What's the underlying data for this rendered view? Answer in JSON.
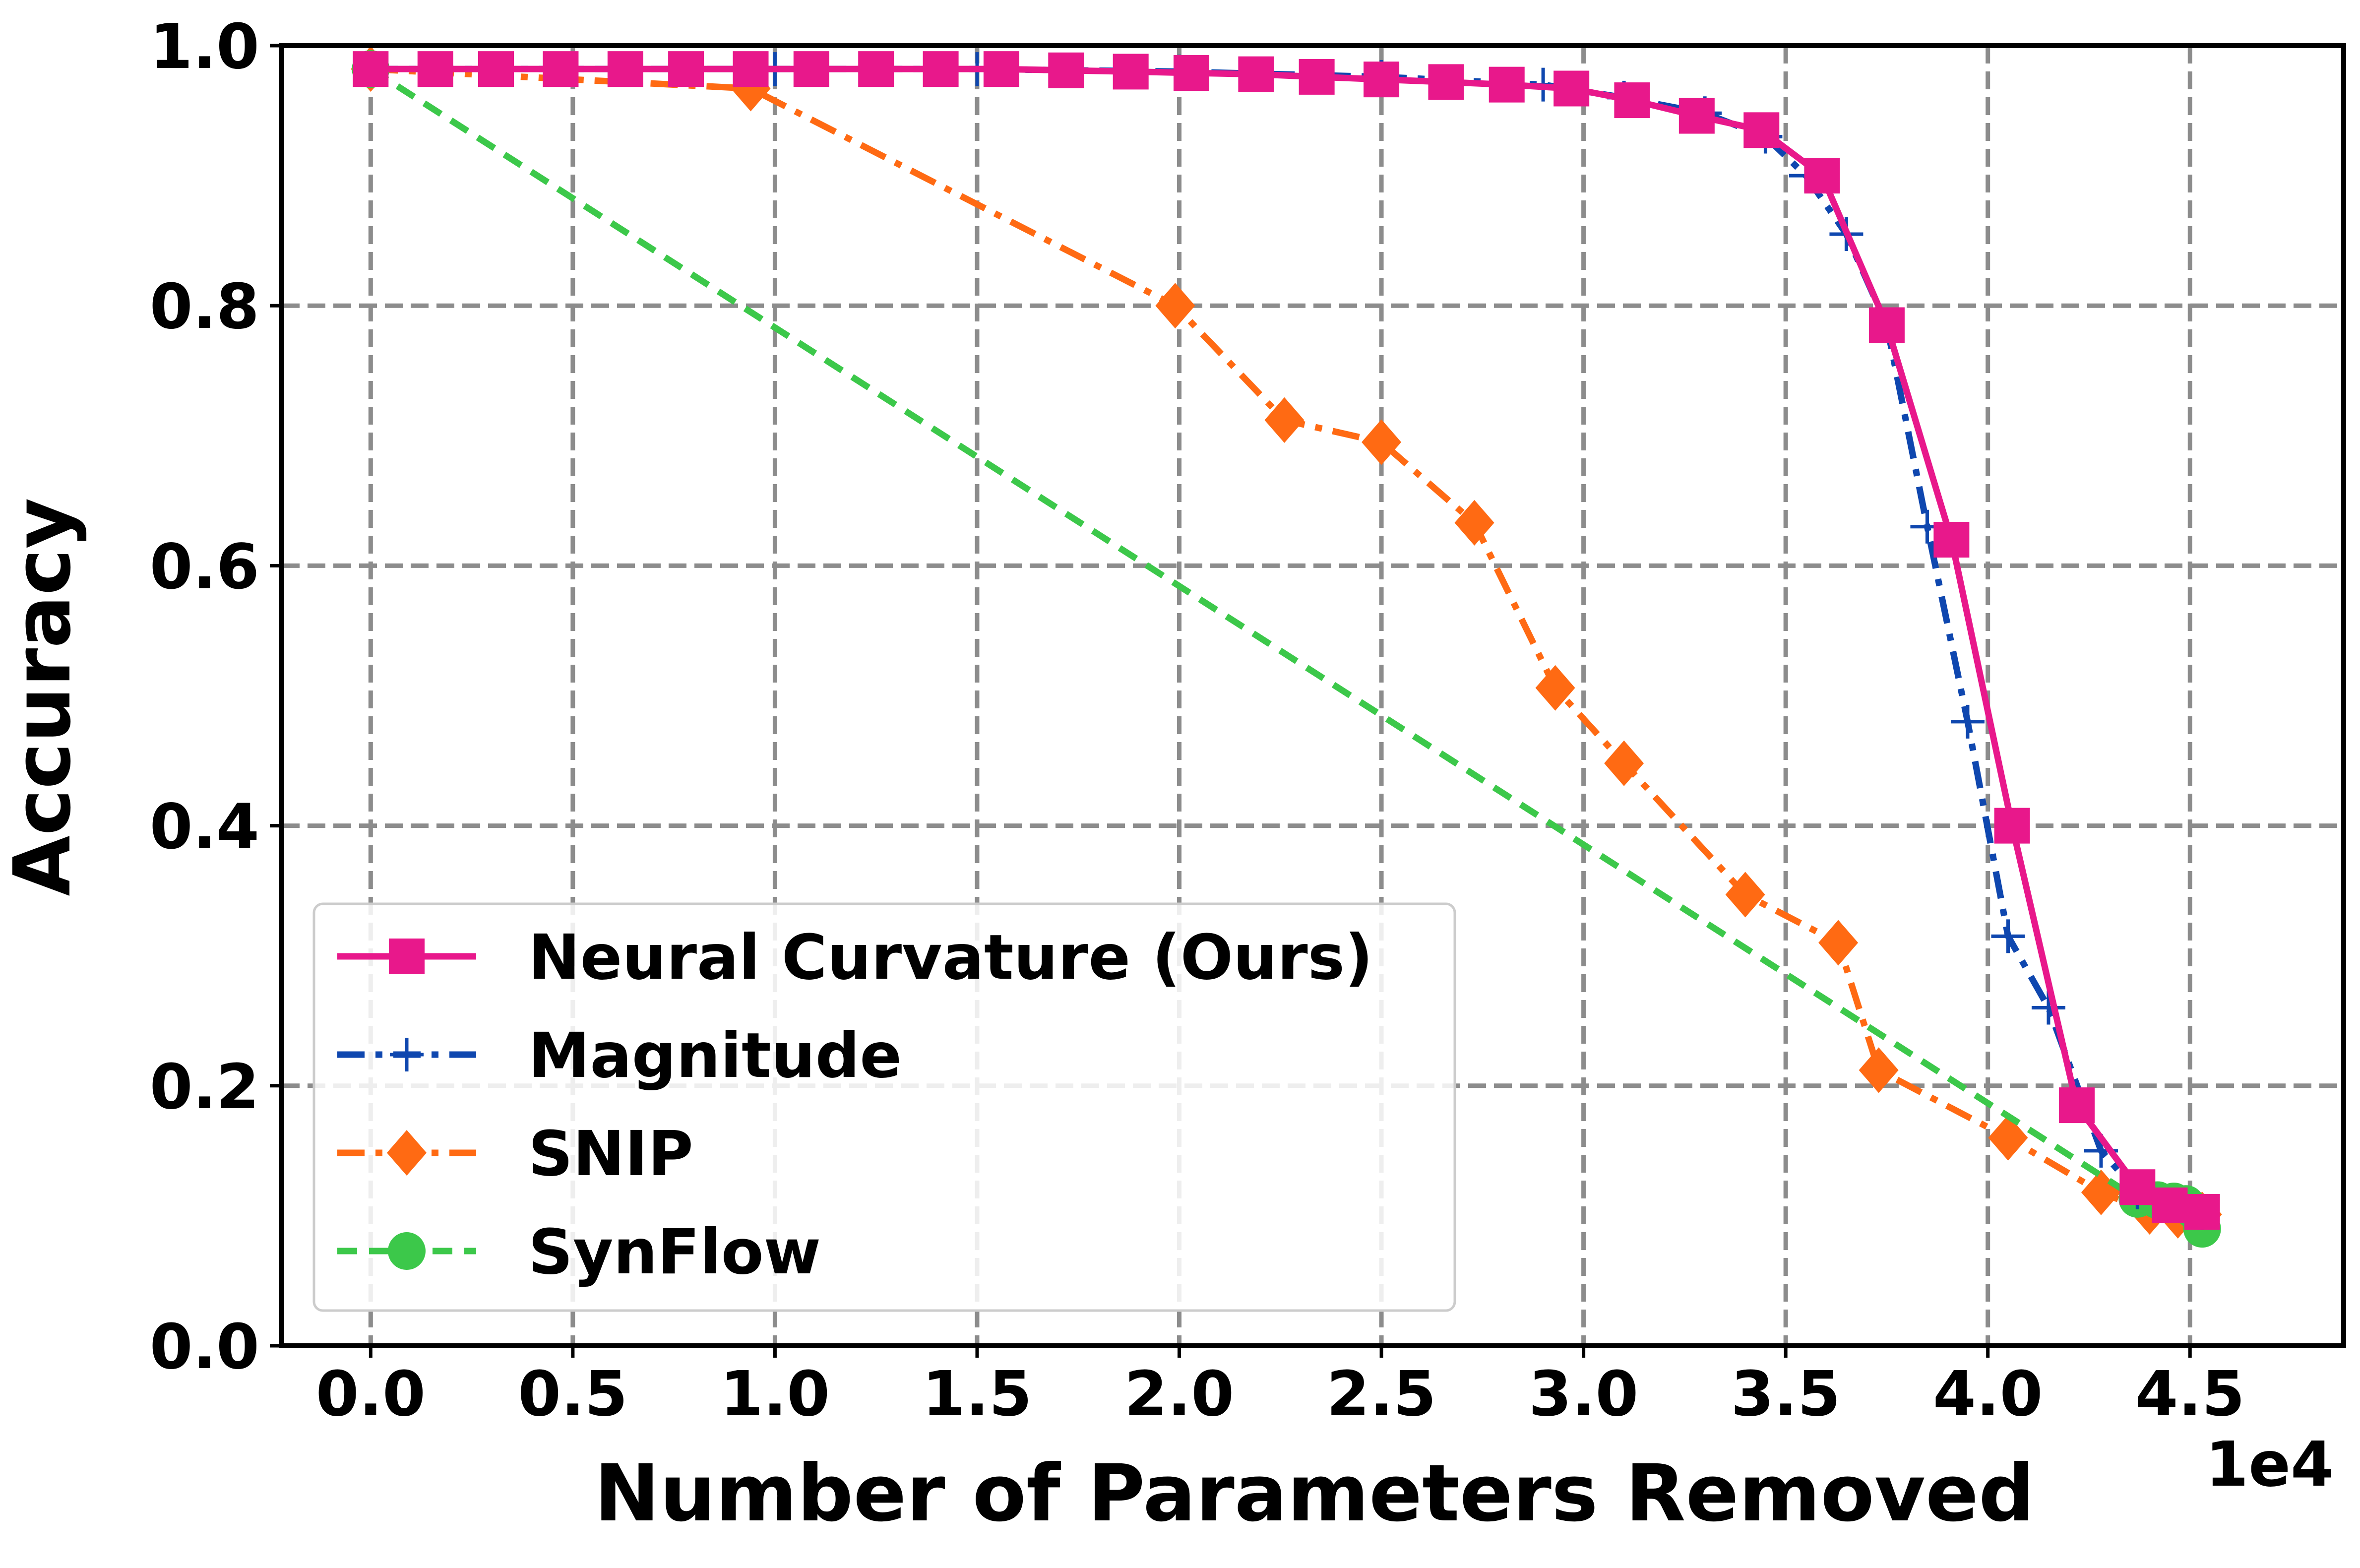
{
  "chart_data": {
    "type": "line",
    "title": "",
    "xlabel": "Number of Parameters Removed",
    "ylabel": "Accuracy",
    "x_offset_label": "1e4",
    "xlim": [
      -0.22,
      4.88
    ],
    "ylim": [
      0.0,
      1.0
    ],
    "xticks": [
      0.0,
      0.5,
      1.0,
      1.5,
      2.0,
      2.5,
      3.0,
      3.5,
      4.0,
      4.5
    ],
    "xtick_labels": [
      "0.0",
      "0.5",
      "1.0",
      "1.5",
      "2.0",
      "2.5",
      "3.0",
      "3.5",
      "4.0",
      "4.5"
    ],
    "yticks": [
      0.0,
      0.2,
      0.4,
      0.6,
      0.8,
      1.0
    ],
    "ytick_labels": [
      "0.0",
      "0.2",
      "0.4",
      "0.6",
      "0.8",
      "1.0"
    ],
    "grid": true,
    "legend_position": "lower-left",
    "series": [
      {
        "name": "Neural Curvature (Ours)",
        "color": "#E8188B",
        "line_style": "solid",
        "marker": "square",
        "x": [
          0.0,
          0.16,
          0.31,
          0.47,
          0.63,
          0.78,
          0.94,
          1.09,
          1.25,
          1.41,
          1.56,
          1.72,
          1.88,
          2.03,
          2.19,
          2.34,
          2.5,
          2.66,
          2.81,
          2.97,
          3.12,
          3.28,
          3.44,
          3.59,
          3.75,
          3.91,
          4.06,
          4.22,
          4.37,
          4.45,
          4.53
        ],
        "y": [
          0.982,
          0.982,
          0.982,
          0.982,
          0.982,
          0.982,
          0.982,
          0.982,
          0.982,
          0.982,
          0.982,
          0.981,
          0.98,
          0.979,
          0.978,
          0.976,
          0.974,
          0.972,
          0.97,
          0.967,
          0.958,
          0.946,
          0.935,
          0.9,
          0.785,
          0.62,
          0.4,
          0.185,
          0.122,
          0.108,
          0.103
        ]
      },
      {
        "name": "Magnitude",
        "color": "#0F47AF",
        "line_style": "dashdot",
        "marker": "plus",
        "x": [
          0.0,
          0.5,
          1.0,
          1.5,
          2.0,
          2.5,
          2.9,
          3.1,
          3.3,
          3.45,
          3.55,
          3.65,
          3.75,
          3.85,
          3.95,
          4.05,
          4.15,
          4.28,
          4.37,
          4.45,
          4.53
        ],
        "y": [
          0.982,
          0.982,
          0.982,
          0.982,
          0.98,
          0.976,
          0.97,
          0.96,
          0.948,
          0.93,
          0.9,
          0.855,
          0.785,
          0.63,
          0.48,
          0.315,
          0.26,
          0.15,
          0.118,
          0.108,
          0.102
        ]
      },
      {
        "name": "SNIP",
        "color": "#FF6A13",
        "line_style": "dashdot",
        "marker": "diamond",
        "x": [
          0.0,
          0.94,
          1.99,
          2.26,
          2.5,
          2.73,
          2.93,
          3.1,
          3.4,
          3.63,
          3.73,
          4.05,
          4.28,
          4.4,
          4.47,
          4.53
        ],
        "y": [
          0.982,
          0.967,
          0.8,
          0.712,
          0.695,
          0.633,
          0.506,
          0.448,
          0.347,
          0.31,
          0.212,
          0.16,
          0.118,
          0.103,
          0.1,
          0.101
        ]
      },
      {
        "name": "SynFlow",
        "color": "#3CC84A",
        "line_style": "dashed",
        "marker": "circle",
        "x": [
          0.0,
          4.37,
          4.42,
          4.46,
          4.49,
          4.51,
          4.53
        ],
        "y": [
          0.982,
          0.113,
          0.112,
          0.111,
          0.109,
          0.104,
          0.09
        ]
      }
    ]
  }
}
